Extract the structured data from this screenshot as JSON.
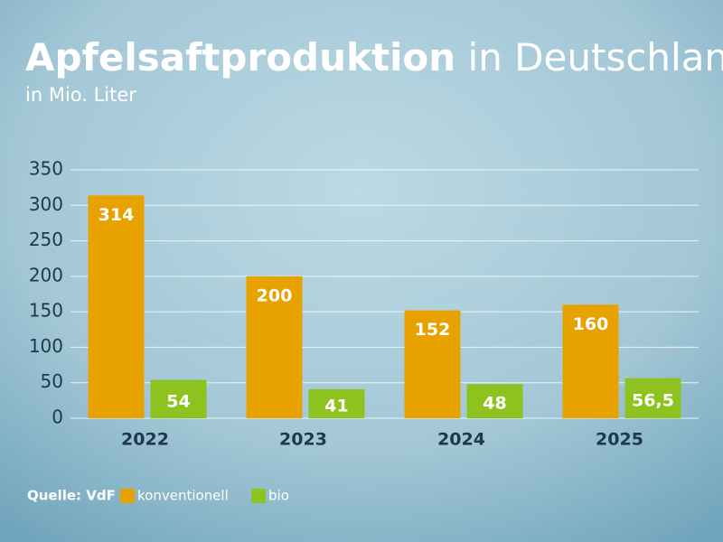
{
  "chart_data": {
    "type": "bar",
    "title": [
      "Apfelsaftproduktion",
      "in Deutschland"
    ],
    "subtitle": "in Mio. Liter",
    "source": "Quelle: VdF",
    "categories": [
      "2022",
      "2023",
      "2024",
      "2025"
    ],
    "series": [
      {
        "name": "konventionell",
        "color": "#e8a200",
        "values": [
          314,
          200,
          152,
          160
        ]
      },
      {
        "name": "bio",
        "color": "#8dc21f",
        "values": [
          54,
          41,
          48,
          56.5
        ],
        "value_labels": [
          "54",
          "41",
          "48",
          "56,5"
        ]
      }
    ],
    "ylim": [
      0,
      350
    ],
    "yticks": [
      0,
      50,
      100,
      150,
      200,
      250,
      300,
      350
    ],
    "grid": true
  }
}
